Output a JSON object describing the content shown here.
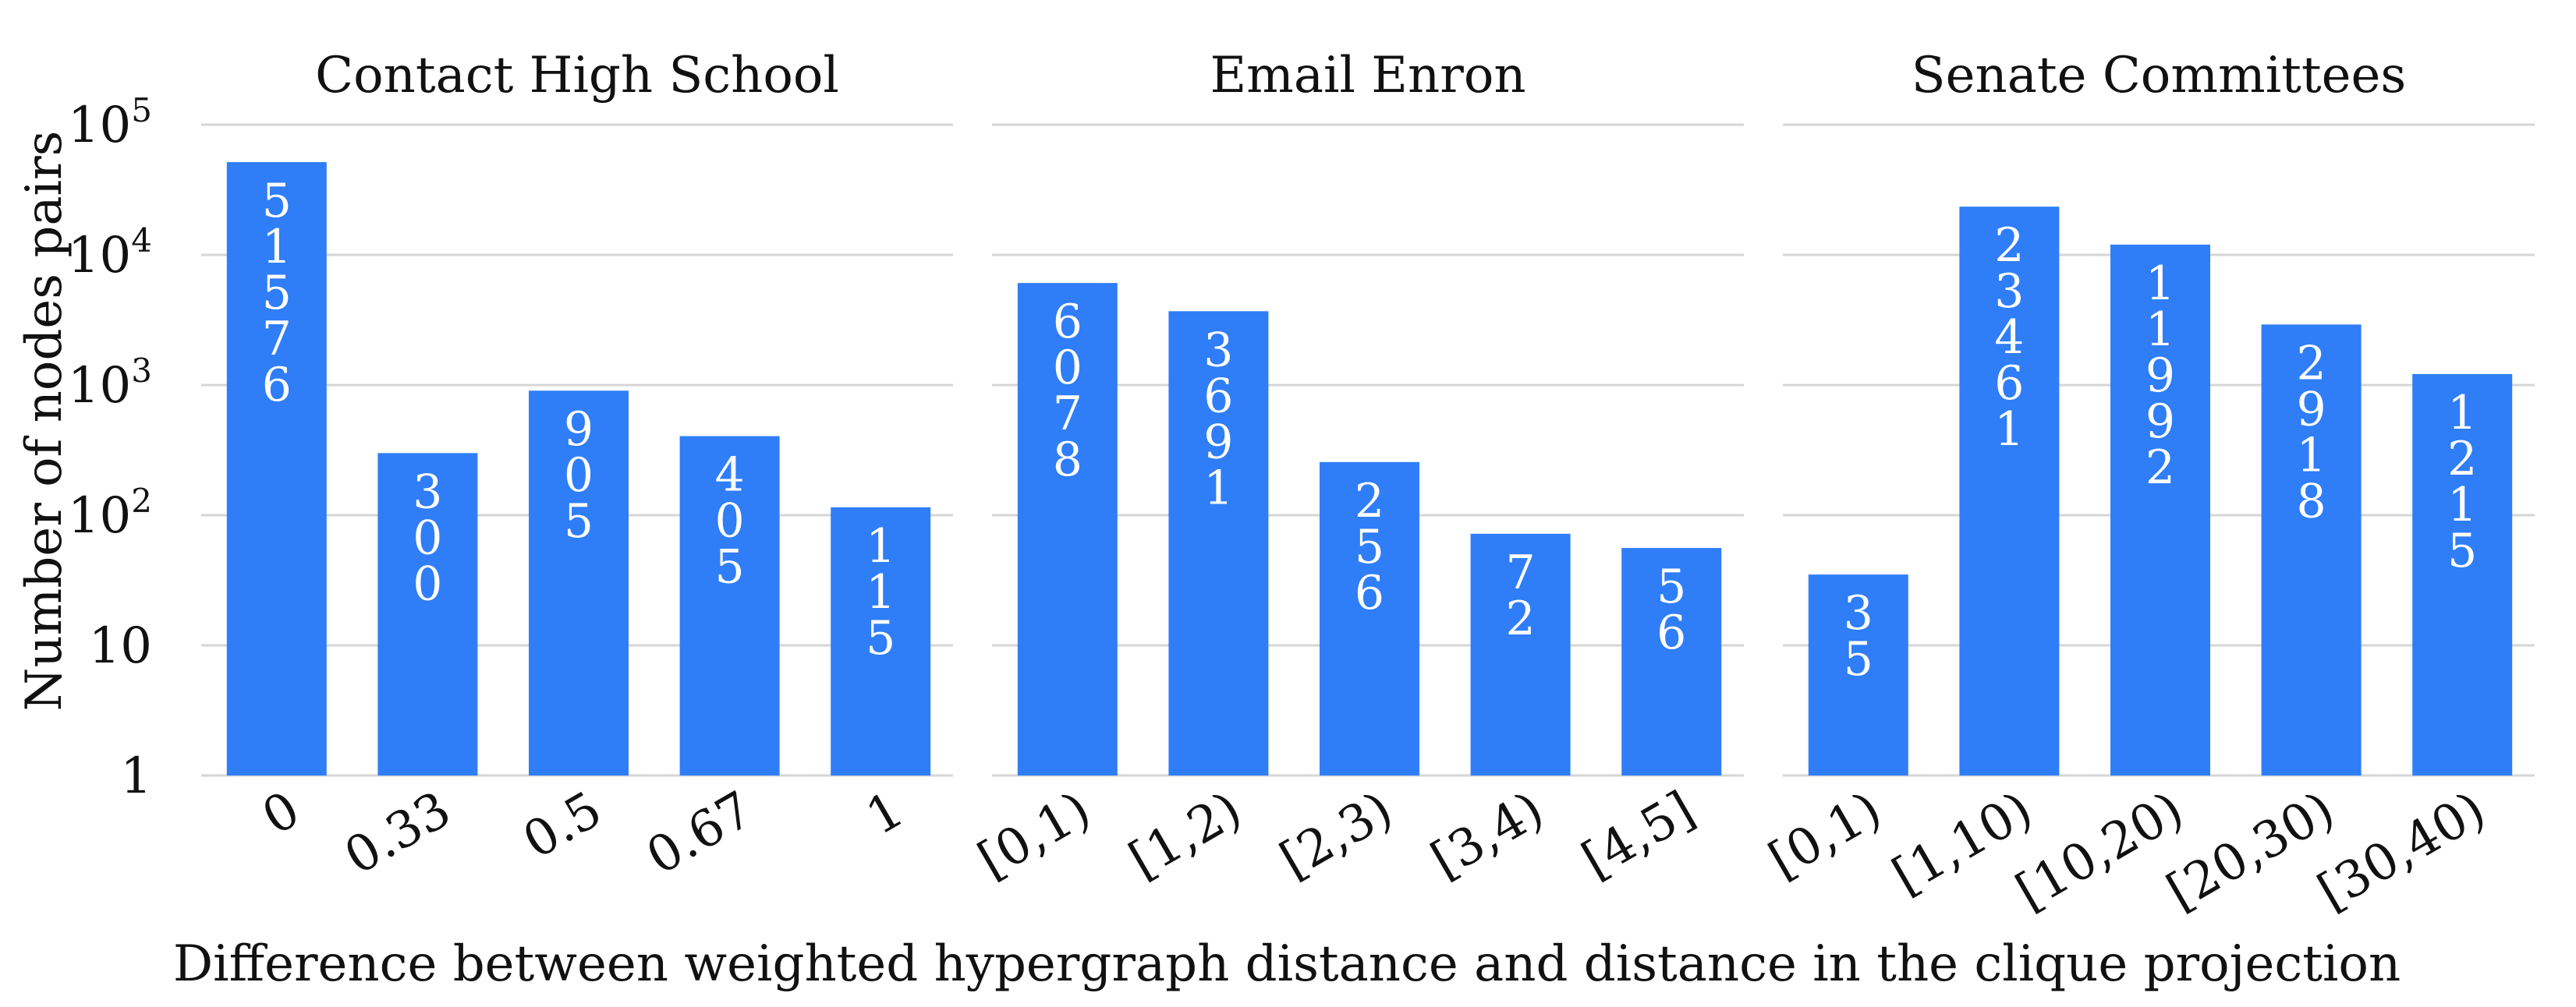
{
  "ylabel": "Number of nodes  pairs",
  "xlabel": "Difference between weighted hypergraph distance and distance in the clique projection",
  "y_ticks": [
    {
      "value": 1,
      "base": "1",
      "exp": ""
    },
    {
      "value": 10,
      "base": "10",
      "exp": ""
    },
    {
      "value": 100,
      "base": "10",
      "exp": "2"
    },
    {
      "value": 1000,
      "base": "10",
      "exp": "3"
    },
    {
      "value": 10000,
      "base": "10",
      "exp": "4"
    },
    {
      "value": 100000,
      "base": "10",
      "exp": "5"
    }
  ],
  "bar_color": "#2f7ef8",
  "chart_data": [
    {
      "type": "bar",
      "title": "Contact High School",
      "categories": [
        "0",
        "0.33",
        "0.5",
        "0.67",
        "1"
      ],
      "values": [
        51576,
        300,
        905,
        405,
        115
      ],
      "yscale": "log",
      "ylim": [
        1,
        100000
      ],
      "grid": true
    },
    {
      "type": "bar",
      "title": "Email Enron",
      "categories": [
        "[0,1)",
        "[1,2)",
        "[2,3)",
        "[3,4)",
        "[4,5]"
      ],
      "values": [
        6078,
        3691,
        256,
        72,
        56
      ],
      "yscale": "log",
      "ylim": [
        1,
        100000
      ],
      "grid": true
    },
    {
      "type": "bar",
      "title": "Senate Committees",
      "categories": [
        "[0,1)",
        "[1,10)",
        "[10,20)",
        "[20,30)",
        "[30,40)"
      ],
      "values": [
        35,
        23461,
        11992,
        2918,
        1215
      ],
      "yscale": "log",
      "ylim": [
        1,
        100000
      ],
      "grid": true
    }
  ]
}
